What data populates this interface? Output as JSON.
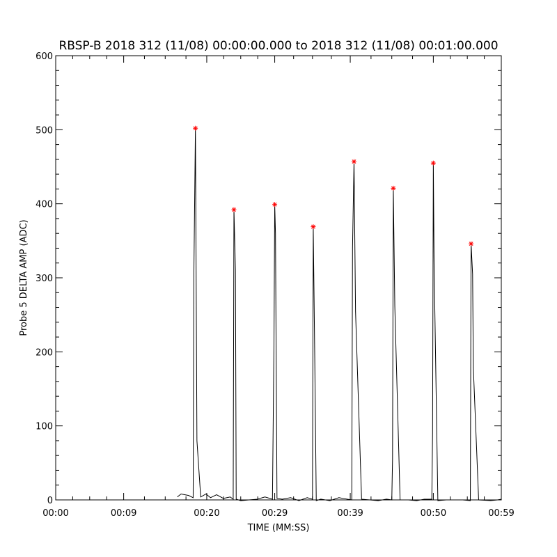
{
  "chart_data": {
    "type": "line",
    "title": "RBSP-B 2018 312 (11/08) 00:00:00.000 to 2018 312 (11/08) 00:01:00.000",
    "xlabel": "TIME (MM:SS)",
    "ylabel": "Probe 5 DELTA AMP (ADC)",
    "xlim": [
      "00:00",
      "00:59"
    ],
    "ylim": [
      0,
      600
    ],
    "x_ticks": [
      "00:00",
      "00:09",
      "00:20",
      "00:29",
      "00:39",
      "00:50",
      "00:59"
    ],
    "y_ticks": [
      "0",
      "100",
      "200",
      "300",
      "400",
      "500",
      "600"
    ],
    "grid": false,
    "series": [
      {
        "color": "#000000",
        "marker": "line",
        "x": [
          "00:16.1",
          "00:16.6",
          "00:17.6",
          "00:18.2",
          "00:18.3",
          "00:18.5",
          "00:18.7",
          "00:19.2",
          "00:19.9",
          "00:20.5",
          "00:21.3",
          "00:22.2",
          "00:23.1",
          "00:23.5",
          "00:23.6",
          "00:23.8",
          "00:23.9",
          "00:24.5",
          "00:25.6",
          "00:26.7",
          "00:27.7",
          "00:28.7",
          "00:28.9",
          "00:29.0",
          "00:29.1",
          "00:29.3",
          "00:30.0",
          "00:31.1",
          "00:32.2",
          "00:33.3",
          "00:34.0",
          "00:34.1",
          "00:34.3",
          "00:34.5",
          "00:35.1",
          "00:36.3",
          "00:37.5",
          "00:38.6",
          "00:39.2",
          "00:39.3",
          "00:39.5",
          "00:39.7",
          "00:40.5",
          "00:41.6",
          "00:42.7",
          "00:43.8",
          "00:44.5",
          "00:44.6",
          "00:44.7",
          "00:44.9",
          "00:45.6",
          "00:46.7",
          "00:47.8",
          "00:48.8",
          "00:49.8",
          "00:49.9",
          "00:50.0",
          "00:50.1",
          "00:50.6",
          "00:51.7",
          "00:52.8",
          "00:53.9",
          "00:54.9",
          "00:55.0",
          "00:55.2",
          "00:55.3",
          "00:56.0",
          "00:57.6",
          "00:58.5",
          "00:59.0"
        ],
        "values": [
          4,
          8,
          6,
          3,
          310,
          502,
          80,
          4,
          8,
          3,
          7,
          2,
          4,
          1,
          392,
          310,
          1,
          -1,
          0,
          1,
          4,
          1,
          210,
          399,
          360,
          2,
          1,
          3,
          -1,
          3,
          1,
          369,
          193,
          -1,
          1,
          -1,
          3,
          1,
          0,
          340,
          457,
          255,
          1,
          0,
          -1,
          1,
          0,
          55,
          421,
          262,
          0,
          0,
          -1,
          1,
          1,
          90,
          455,
          320,
          -1,
          0,
          0,
          0,
          -1,
          346,
          305,
          178,
          0,
          -1,
          0,
          1
        ]
      },
      {
        "color": "#ff0000",
        "marker": "star",
        "x": [
          "00:18.5",
          "00:23.6",
          "00:29.0",
          "00:34.1",
          "00:39.5",
          "00:44.7",
          "00:50.0",
          "00:55.0"
        ],
        "values": [
          502,
          392,
          399,
          369,
          457,
          421,
          455,
          346
        ]
      }
    ]
  }
}
